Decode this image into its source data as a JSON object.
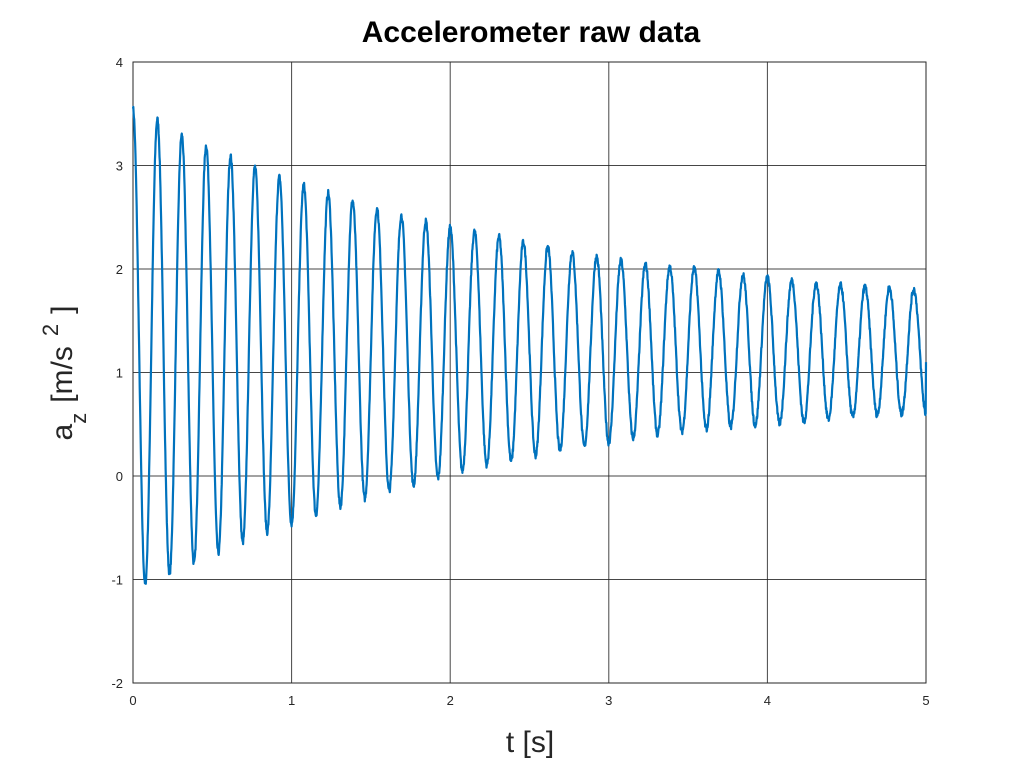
{
  "chart_data": {
    "type": "line",
    "title": "Accelerometer raw data",
    "xlabel": "t [s]",
    "ylabel": {
      "base": "a",
      "subscript": "z",
      "unit_open": "[m/s",
      "superscript": "2",
      "unit_close": "]"
    },
    "xlim": [
      0,
      5
    ],
    "ylim": [
      -2,
      4
    ],
    "xticks": [
      "0",
      "1",
      "2",
      "3",
      "4",
      "5"
    ],
    "yticks": [
      "-2",
      "-1",
      "0",
      "1",
      "2",
      "3",
      "4"
    ],
    "grid": true,
    "series": [
      {
        "color": "#0072BD",
        "signal": "damped oscillation",
        "offset": 1.22,
        "initial_value": 3.55,
        "frequency_hz": 6.5,
        "peaks": [
          [
            0.0,
            3.55
          ],
          [
            0.15,
            3.45
          ],
          [
            0.3,
            3.3
          ],
          [
            0.45,
            3.2
          ],
          [
            0.6,
            3.1
          ],
          [
            0.75,
            3.0
          ],
          [
            0.9,
            2.9
          ],
          [
            1.0,
            2.85
          ],
          [
            1.2,
            2.75
          ],
          [
            1.4,
            2.65
          ],
          [
            1.6,
            2.55
          ],
          [
            1.8,
            2.48
          ],
          [
            2.0,
            2.4
          ],
          [
            2.2,
            2.35
          ],
          [
            2.4,
            2.28
          ],
          [
            2.6,
            2.22
          ],
          [
            2.8,
            2.15
          ],
          [
            3.0,
            2.1
          ],
          [
            3.2,
            2.05
          ],
          [
            3.4,
            2.02
          ],
          [
            3.6,
            2.0
          ],
          [
            3.8,
            1.95
          ],
          [
            4.0,
            1.92
          ],
          [
            4.2,
            1.88
          ],
          [
            4.4,
            1.85
          ],
          [
            4.6,
            1.83
          ],
          [
            4.8,
            1.82
          ],
          [
            4.95,
            1.8
          ]
        ],
        "troughs": [
          [
            0.07,
            -1.05
          ],
          [
            0.22,
            -0.95
          ],
          [
            0.38,
            -0.85
          ],
          [
            0.53,
            -0.75
          ],
          [
            0.68,
            -0.65
          ],
          [
            0.83,
            -0.55
          ],
          [
            0.97,
            -0.48
          ],
          [
            1.2,
            -0.35
          ],
          [
            1.4,
            -0.25
          ],
          [
            1.6,
            -0.15
          ],
          [
            1.8,
            -0.08
          ],
          [
            2.0,
            0.02
          ],
          [
            2.2,
            0.1
          ],
          [
            2.4,
            0.15
          ],
          [
            2.6,
            0.22
          ],
          [
            2.8,
            0.28
          ],
          [
            3.0,
            0.32
          ],
          [
            3.2,
            0.38
          ],
          [
            3.4,
            0.42
          ],
          [
            3.6,
            0.45
          ],
          [
            3.8,
            0.48
          ],
          [
            4.0,
            0.5
          ],
          [
            4.2,
            0.52
          ],
          [
            4.4,
            0.55
          ],
          [
            4.6,
            0.58
          ],
          [
            4.8,
            0.6
          ]
        ],
        "final_value": 1.1
      }
    ]
  }
}
